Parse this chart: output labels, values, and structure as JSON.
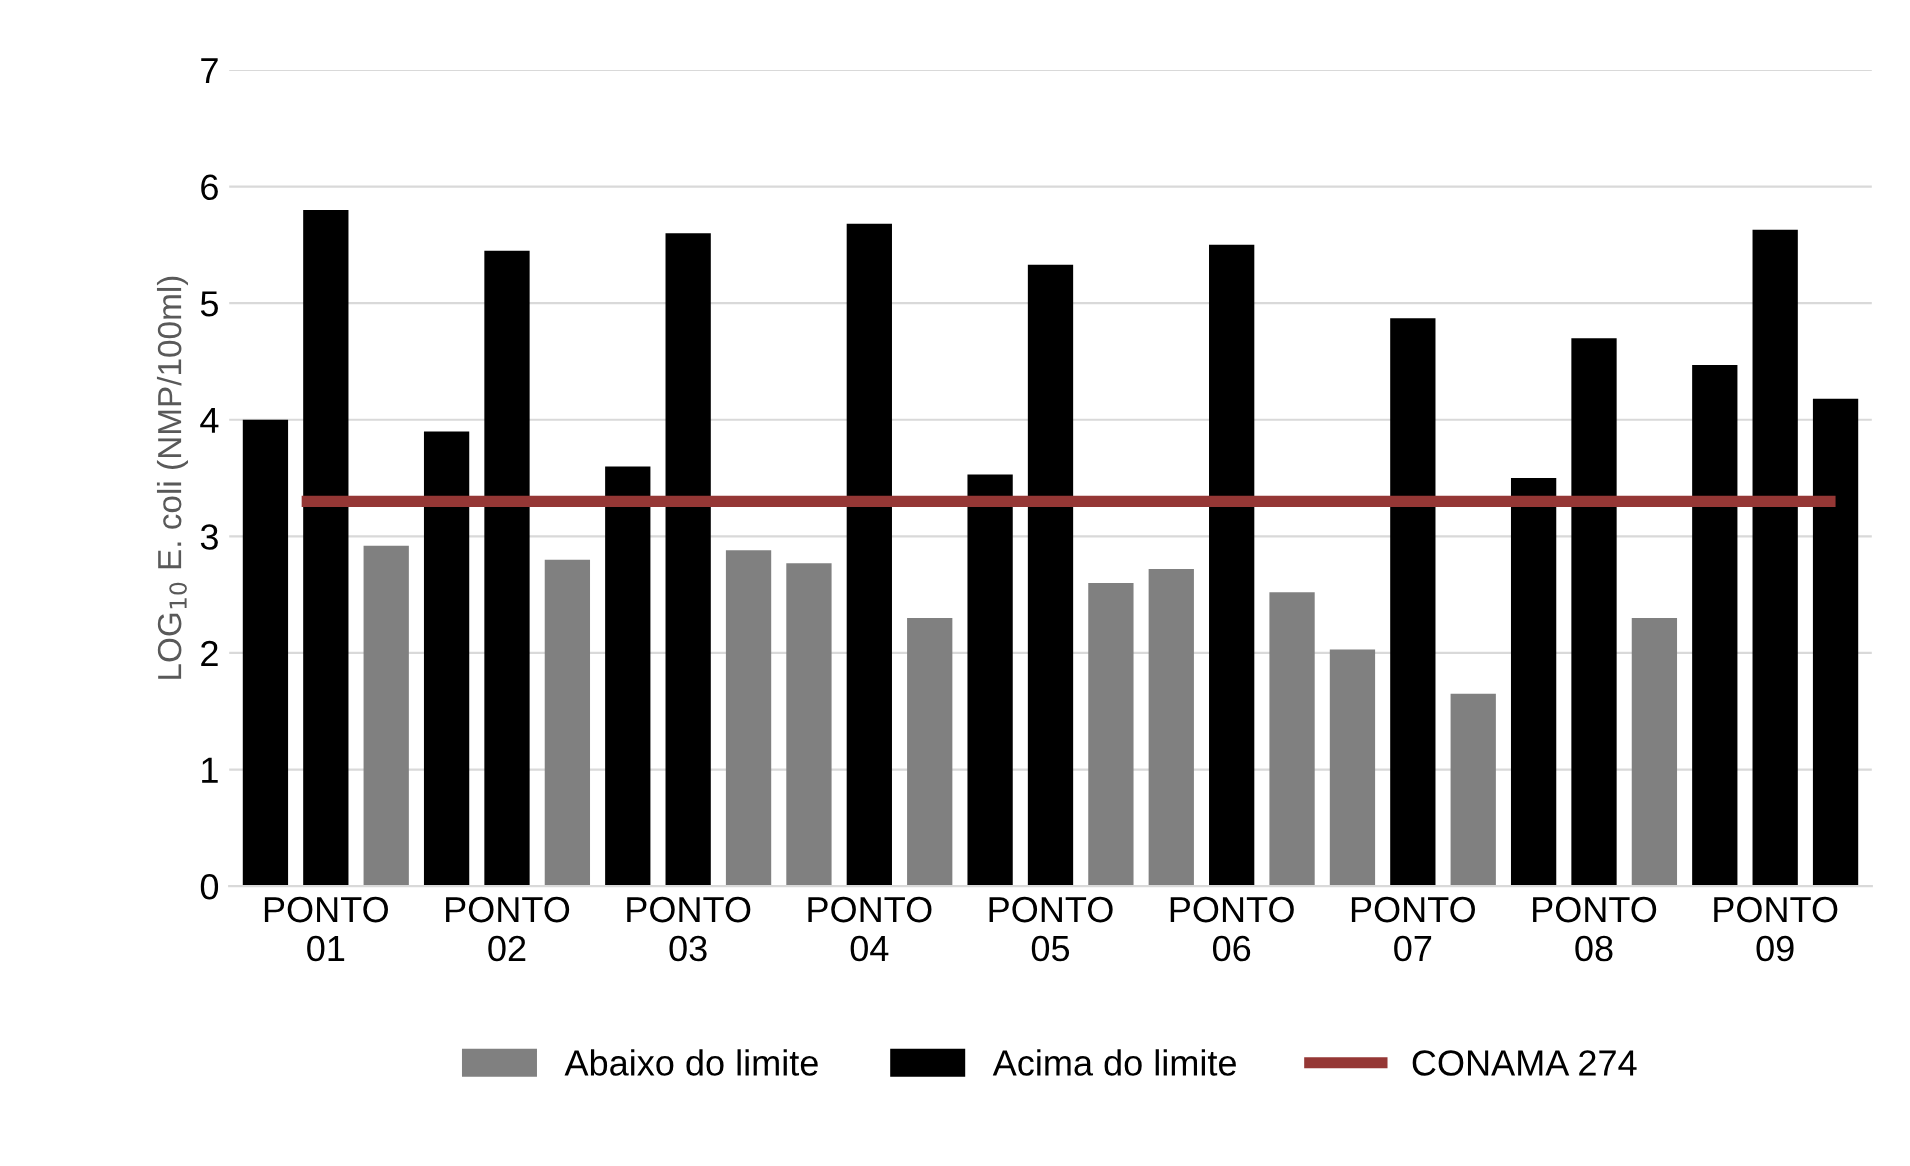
{
  "chart_data": {
    "type": "bar",
    "ylabel": "LOG$_{10}$ E. coli (NMP/100ml)",
    "categories": [
      null,
      "PONTO\n01",
      null,
      null,
      "PONTO\n02",
      null,
      null,
      "PONTO\n03",
      null,
      null,
      "PONTO\n04",
      null,
      null,
      "PONTO\n05",
      null,
      null,
      "PONTO\n06",
      null,
      null,
      "PONTO\n07",
      null,
      null,
      "PONTO\n08",
      null,
      null,
      "PONTO\n09",
      null
    ],
    "series": [
      {
        "name": "Abaixo do limite",
        "color": "#808080",
        "values": [
          null,
          null,
          2.92,
          null,
          null,
          2.8,
          null,
          null,
          2.88,
          2.77,
          null,
          2.3,
          null,
          null,
          2.6,
          2.72,
          null,
          2.52,
          2.03,
          null,
          1.65,
          null,
          null,
          2.3,
          null,
          null,
          null
        ]
      },
      {
        "name": "Acima do limite",
        "color": "#000000",
        "values": [
          4.0,
          5.8,
          null,
          3.9,
          5.45,
          null,
          3.6,
          5.6,
          null,
          null,
          5.68,
          null,
          3.53,
          5.33,
          null,
          null,
          5.5,
          null,
          null,
          4.87,
          null,
          3.5,
          4.7,
          null,
          4.47,
          5.63,
          4.18
        ]
      }
    ],
    "ref_lines": [
      {
        "axis": "y",
        "value": 3.3,
        "label": "CONAMA 274",
        "color": "#953735"
      }
    ],
    "ylim": [
      0,
      7
    ],
    "yticks": [
      0,
      1,
      2,
      3,
      4,
      5,
      6,
      7
    ],
    "grid": "y",
    "legend": "bottom"
  }
}
